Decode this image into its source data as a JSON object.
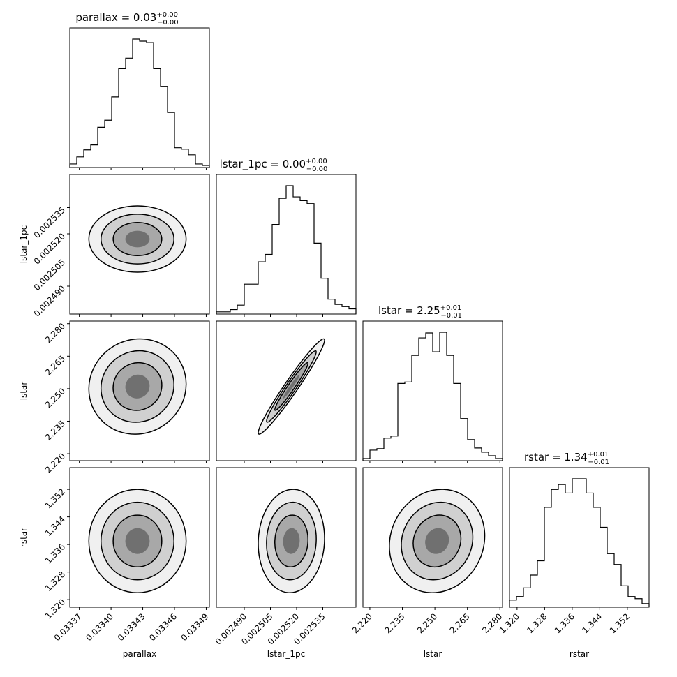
{
  "chart_data": {
    "type": "corner",
    "variables": [
      {
        "name": "parallax",
        "label": "parallax",
        "title": {
          "name": "parallax",
          "value": "0.03",
          "plus": "+0.00",
          "minus": "−0.00"
        },
        "range": [
          0.033361,
          0.033493
        ],
        "ticks": [
          "0.03337",
          "0.03340",
          "0.03343",
          "0.03346",
          "0.03349"
        ],
        "mean": 0.033425,
        "sd": 2.3e-05,
        "hist": [
          5,
          15,
          25,
          32,
          57,
          67,
          100,
          140,
          155,
          182,
          179,
          177,
          140,
          115,
          78,
          28,
          26,
          18,
          5,
          3
        ]
      },
      {
        "name": "lstar_1pc",
        "label": "lstar_1pc",
        "title": {
          "name": "lstar_1pc",
          "value": "0.00",
          "plus": "+0.00",
          "minus": "−0.00"
        },
        "range": [
          0.002474,
          0.002554
        ],
        "ticks": [
          "0.002490",
          "0.002505",
          "0.002520",
          "0.002535"
        ],
        "mean": 0.002517,
        "sd": 9.5e-06,
        "hist": [
          3,
          3,
          6,
          12,
          40,
          40,
          70,
          80,
          120,
          155,
          172,
          157,
          152,
          148,
          95,
          48,
          20,
          13,
          10,
          7
        ]
      },
      {
        "name": "lstar",
        "label": "lstar",
        "title": {
          "name": "lstar",
          "value": "2.25",
          "plus": "+0.01",
          "minus": "−0.01"
        },
        "range": [
          2.2168,
          2.2812
        ],
        "ticks": [
          "2.220",
          "2.235",
          "2.250",
          "2.265",
          "2.280"
        ],
        "mean": 2.251,
        "sd": 0.011,
        "hist": [
          3,
          15,
          17,
          32,
          35,
          110,
          112,
          150,
          175,
          182,
          155,
          183,
          150,
          110,
          60,
          30,
          18,
          12,
          7,
          3
        ]
      },
      {
        "name": "rstar",
        "label": "rstar",
        "title": {
          "name": "rstar",
          "value": "1.34",
          "plus": "+0.01",
          "minus": "−0.01"
        },
        "range": [
          1.3178,
          1.3583
        ],
        "ticks": [
          "1.320",
          "1.328",
          "1.336",
          "1.344",
          "1.352"
        ],
        "mean": 1.337,
        "sd": 0.0075,
        "hist": [
          10,
          15,
          27,
          45,
          65,
          140,
          165,
          172,
          160,
          180,
          180,
          160,
          140,
          112,
          75,
          60,
          30,
          15,
          12,
          5
        ]
      }
    ],
    "correlations": {
      "0-1": 0.0,
      "0-2": 0.05,
      "0-3": 0.0,
      "1-2": 0.97,
      "1-3": 0.05,
      "2-3": 0.1
    },
    "grid": false
  }
}
